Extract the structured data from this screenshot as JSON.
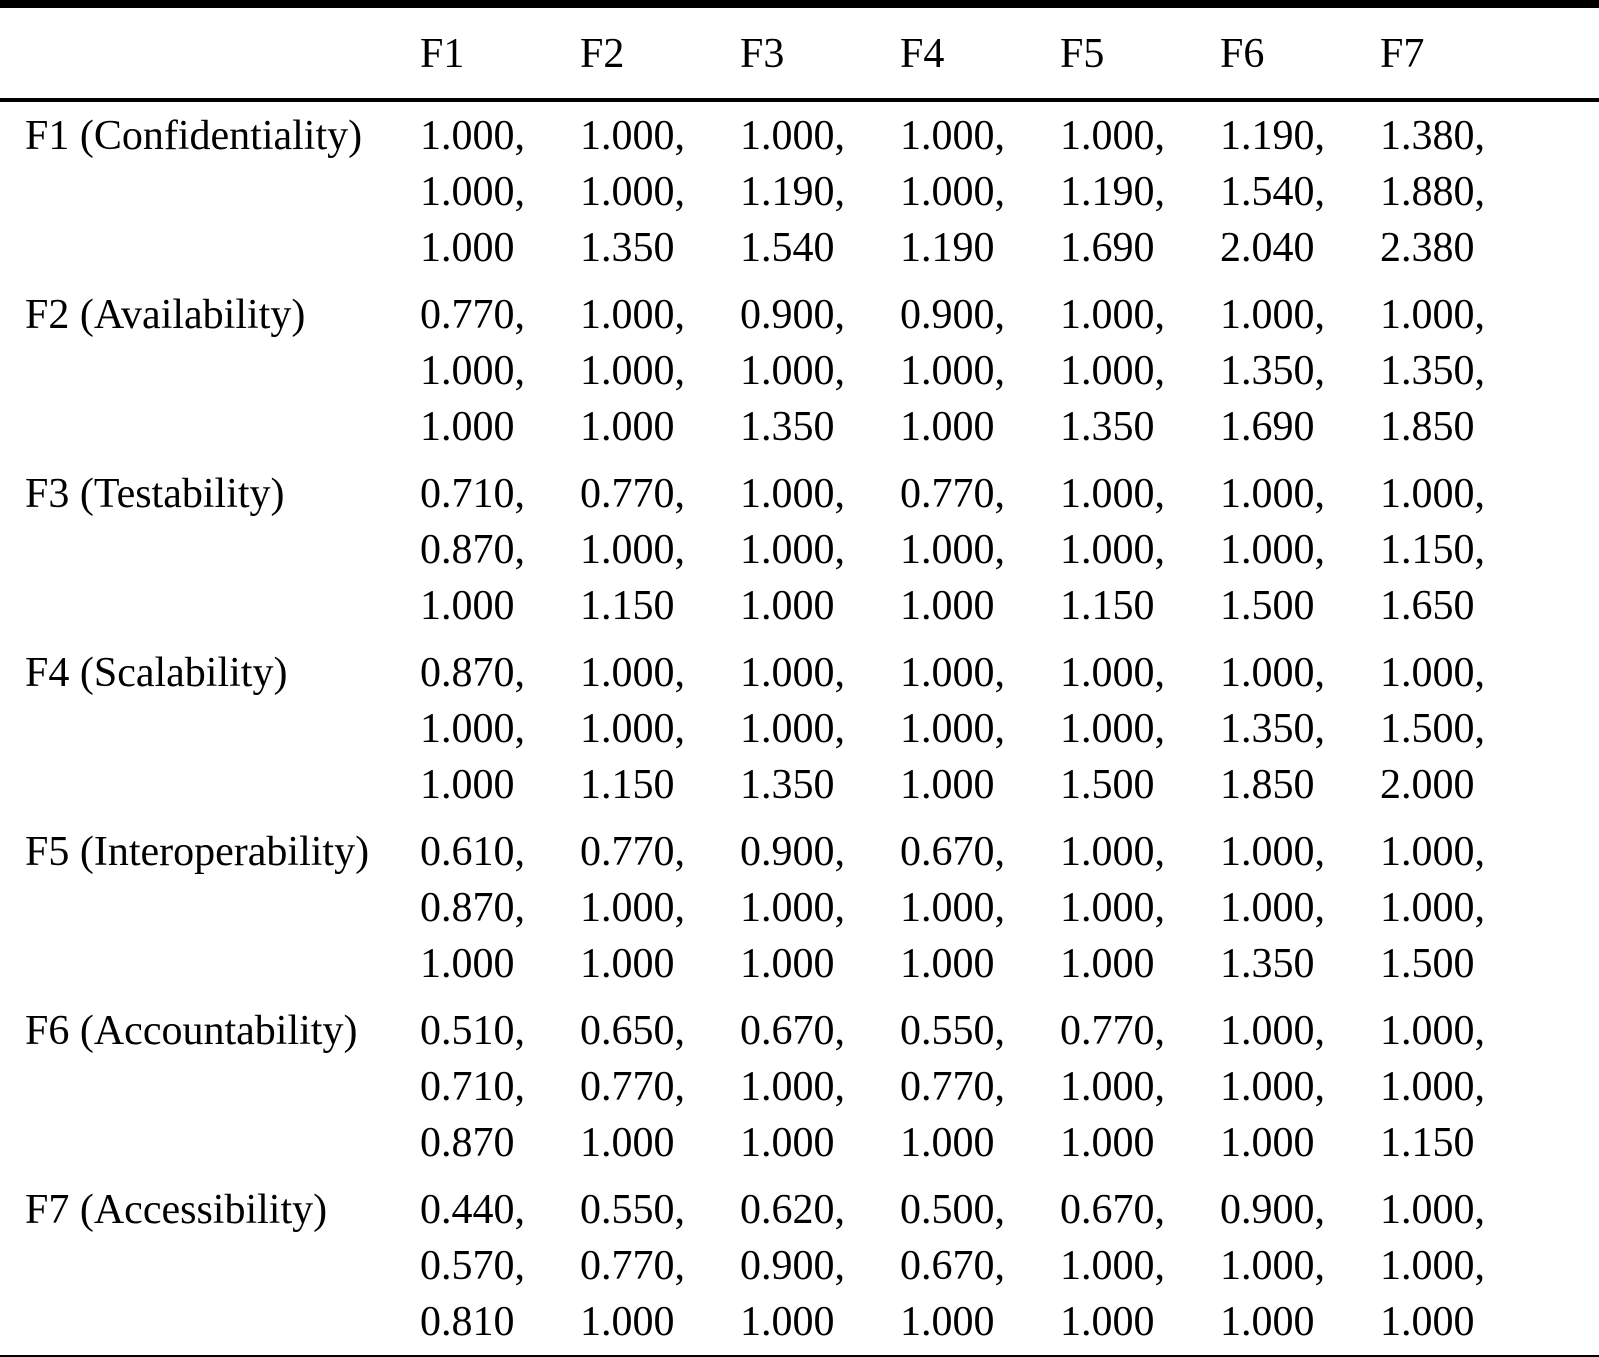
{
  "table": {
    "corner_label": "",
    "columns": [
      "F1",
      "F2",
      "F3",
      "F4",
      "F5",
      "F6",
      "F7"
    ],
    "value_separator": ",",
    "rows": [
      {
        "label": "F1 (Confidentiality)",
        "cells": [
          [
            "1.000",
            "1.000",
            "1.000"
          ],
          [
            "1.000",
            "1.000",
            "1.350"
          ],
          [
            "1.000",
            "1.190",
            "1.540"
          ],
          [
            "1.000",
            "1.000",
            "1.190"
          ],
          [
            "1.000",
            "1.190",
            "1.690"
          ],
          [
            "1.190",
            "1.540",
            "2.040"
          ],
          [
            "1.380",
            "1.880",
            "2.380"
          ]
        ]
      },
      {
        "label": "F2 (Availability)",
        "cells": [
          [
            "0.770",
            "1.000",
            "1.000"
          ],
          [
            "1.000",
            "1.000",
            "1.000"
          ],
          [
            "0.900",
            "1.000",
            "1.350"
          ],
          [
            "0.900",
            "1.000",
            "1.000"
          ],
          [
            "1.000",
            "1.000",
            "1.350"
          ],
          [
            "1.000",
            "1.350",
            "1.690"
          ],
          [
            "1.000",
            "1.350",
            "1.850"
          ]
        ]
      },
      {
        "label": "F3 (Testability)",
        "cells": [
          [
            "0.710",
            "0.870",
            "1.000"
          ],
          [
            "0.770",
            "1.000",
            "1.150"
          ],
          [
            "1.000",
            "1.000",
            "1.000"
          ],
          [
            "0.770",
            "1.000",
            "1.000"
          ],
          [
            "1.000",
            "1.000",
            "1.150"
          ],
          [
            "1.000",
            "1.000",
            "1.500"
          ],
          [
            "1.000",
            "1.150",
            "1.650"
          ]
        ]
      },
      {
        "label": "F4 (Scalability)",
        "cells": [
          [
            "0.870",
            "1.000",
            "1.000"
          ],
          [
            "1.000",
            "1.000",
            "1.150"
          ],
          [
            "1.000",
            "1.000",
            "1.350"
          ],
          [
            "1.000",
            "1.000",
            "1.000"
          ],
          [
            "1.000",
            "1.000",
            "1.500"
          ],
          [
            "1.000",
            "1.350",
            "1.850"
          ],
          [
            "1.000",
            "1.500",
            "2.000"
          ]
        ]
      },
      {
        "label": "F5 (Interoperability)",
        "cells": [
          [
            "0.610",
            "0.870",
            "1.000"
          ],
          [
            "0.770",
            "1.000",
            "1.000"
          ],
          [
            "0.900",
            "1.000",
            "1.000"
          ],
          [
            "0.670",
            "1.000",
            "1.000"
          ],
          [
            "1.000",
            "1.000",
            "1.000"
          ],
          [
            "1.000",
            "1.000",
            "1.350"
          ],
          [
            "1.000",
            "1.000",
            "1.500"
          ]
        ]
      },
      {
        "label": "F6 (Accountability)",
        "cells": [
          [
            "0.510",
            "0.710",
            "0.870"
          ],
          [
            "0.650",
            "0.770",
            "1.000"
          ],
          [
            "0.670",
            "1.000",
            "1.000"
          ],
          [
            "0.550",
            "0.770",
            "1.000"
          ],
          [
            "0.770",
            "1.000",
            "1.000"
          ],
          [
            "1.000",
            "1.000",
            "1.000"
          ],
          [
            "1.000",
            "1.000",
            "1.150"
          ]
        ]
      },
      {
        "label": "F7 (Accessibility)",
        "cells": [
          [
            "0.440",
            "0.570",
            "0.810"
          ],
          [
            "0.550",
            "0.770",
            "1.000"
          ],
          [
            "0.620",
            "0.900",
            "1.000"
          ],
          [
            "0.500",
            "0.670",
            "1.000"
          ],
          [
            "0.670",
            "1.000",
            "1.000"
          ],
          [
            "0.900",
            "1.000",
            "1.000"
          ],
          [
            "1.000",
            "1.000",
            "1.000"
          ]
        ]
      }
    ]
  }
}
